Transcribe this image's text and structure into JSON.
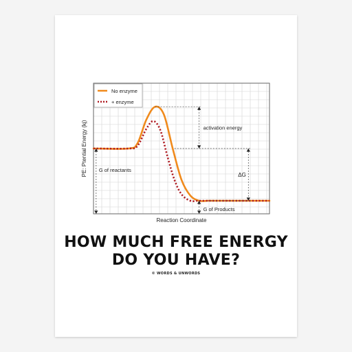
{
  "headline": {
    "line1": "HOW MUCH FREE ENERGY",
    "line2": "DO YOU HAVE?",
    "credit": "© WORDS & UNWORDS"
  },
  "chart_data": {
    "type": "line",
    "title": "",
    "xlabel": "Reaction Coordinate",
    "ylabel": "PE: Ptential Energy (kj)",
    "xlim": [
      0,
      10
    ],
    "ylim": [
      0,
      10
    ],
    "grid": true,
    "legend_position": "top-left",
    "series": [
      {
        "name": "No enzyme",
        "color": "#f08a1c",
        "style": "solid",
        "x": [
          0,
          2.0,
          2.5,
          3.0,
          3.5,
          4.0,
          4.5,
          5.0,
          5.5,
          6.0,
          6.5,
          7.0,
          8.0,
          10
        ],
        "y": [
          5.0,
          5.0,
          5.4,
          7.2,
          8.2,
          7.6,
          5.0,
          2.6,
          1.4,
          1.0,
          1.0,
          1.0,
          1.0,
          1.0
        ]
      },
      {
        "name": "+ enzyme",
        "color": "#b01d24",
        "style": "dotted",
        "x": [
          0,
          2.0,
          2.5,
          3.0,
          3.4,
          3.8,
          4.2,
          4.6,
          5.0,
          5.5,
          6.0,
          7.0,
          10
        ],
        "y": [
          5.0,
          5.0,
          5.2,
          6.5,
          7.1,
          6.4,
          4.4,
          2.6,
          1.5,
          1.0,
          1.0,
          1.0,
          1.0
        ]
      }
    ],
    "annotations": {
      "activation": "activation energy",
      "delta_g": "ΔG",
      "reactants": "G of reactants",
      "products": "G of Products"
    }
  }
}
